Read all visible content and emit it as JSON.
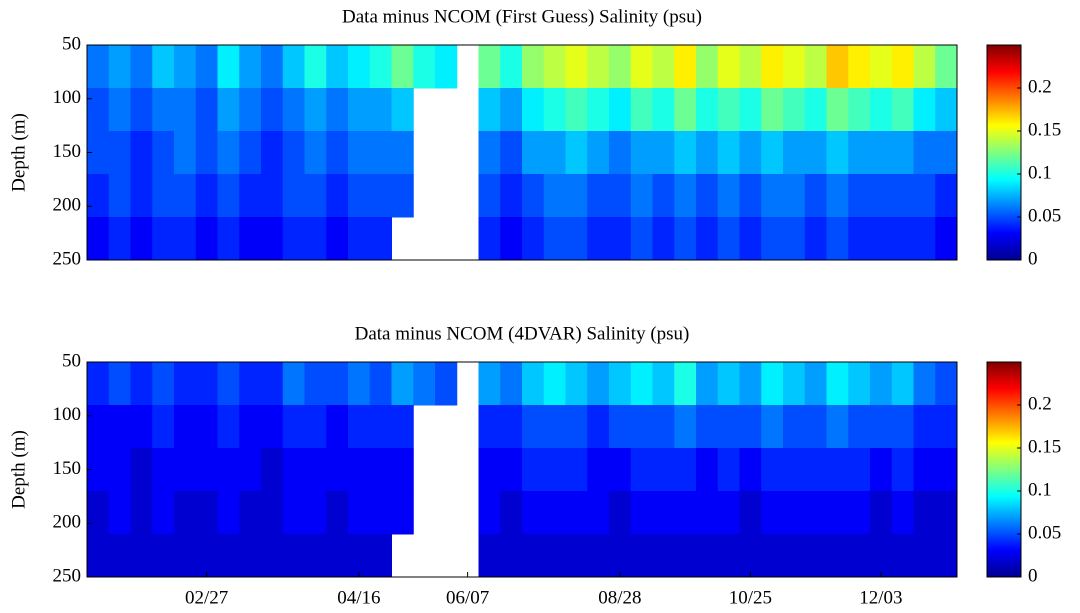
{
  "chart_data": [
    {
      "type": "heatmap",
      "title": "Data minus NCOM (First Guess) Salinity (psu)",
      "y_label": "Depth (m)",
      "ylim": [
        50,
        250
      ],
      "yticks": [
        50,
        100,
        150,
        200,
        250
      ],
      "y_reversed": true,
      "y_edges": [
        50,
        90,
        130,
        170,
        210,
        250
      ],
      "colormap": "jet",
      "clim": [
        0,
        0.25
      ],
      "cticks": [
        0,
        0.05,
        0.1,
        0.15,
        0.2
      ],
      "values": [
        [
          0.06,
          0.07,
          0.06,
          0.08,
          0.07,
          0.06,
          0.09,
          0.07,
          0.06,
          0.08,
          0.1,
          0.08,
          0.09,
          0.1,
          0.12,
          0.1,
          0.09,
          null,
          0.12,
          0.1,
          0.13,
          0.14,
          0.15,
          0.14,
          0.13,
          0.15,
          0.14,
          0.16,
          0.13,
          0.15,
          0.14,
          0.16,
          0.15,
          0.14,
          0.17,
          0.16,
          0.15,
          0.16,
          0.14,
          0.12
        ],
        [
          0.05,
          0.06,
          0.05,
          0.06,
          0.06,
          0.05,
          0.07,
          0.06,
          0.05,
          0.06,
          0.07,
          0.06,
          0.07,
          0.07,
          0.08,
          null,
          null,
          null,
          0.08,
          0.07,
          0.09,
          0.1,
          0.11,
          0.1,
          0.09,
          0.11,
          0.1,
          0.12,
          0.1,
          0.11,
          0.1,
          0.12,
          0.11,
          0.1,
          0.12,
          0.11,
          0.1,
          0.11,
          0.09,
          0.08
        ],
        [
          0.05,
          0.05,
          0.04,
          0.05,
          0.06,
          0.05,
          0.06,
          0.05,
          0.04,
          0.05,
          0.06,
          0.05,
          0.06,
          0.06,
          0.06,
          null,
          null,
          null,
          0.06,
          0.05,
          0.07,
          0.07,
          0.08,
          0.07,
          0.06,
          0.07,
          0.07,
          0.08,
          0.07,
          0.08,
          0.07,
          0.08,
          0.07,
          0.07,
          0.08,
          0.07,
          0.07,
          0.07,
          0.06,
          0.06
        ],
        [
          0.04,
          0.05,
          0.04,
          0.05,
          0.05,
          0.04,
          0.05,
          0.04,
          0.04,
          0.05,
          0.05,
          0.04,
          0.05,
          0.05,
          0.05,
          null,
          null,
          null,
          0.05,
          0.04,
          0.05,
          0.06,
          0.06,
          0.05,
          0.05,
          0.06,
          0.05,
          0.06,
          0.05,
          0.06,
          0.05,
          0.06,
          0.06,
          0.05,
          0.06,
          0.05,
          0.05,
          0.05,
          0.05,
          0.04
        ],
        [
          0.03,
          0.04,
          0.03,
          0.04,
          0.04,
          0.03,
          0.04,
          0.03,
          0.03,
          0.04,
          0.04,
          0.03,
          0.04,
          0.04,
          null,
          null,
          null,
          null,
          0.04,
          0.03,
          0.04,
          0.05,
          0.05,
          0.04,
          0.04,
          0.05,
          0.04,
          0.05,
          0.04,
          0.05,
          0.04,
          0.05,
          0.05,
          0.04,
          0.05,
          0.04,
          0.04,
          0.04,
          0.04,
          0.03
        ]
      ]
    },
    {
      "type": "heatmap",
      "title": "Data minus NCOM (4DVAR) Salinity (psu)",
      "y_label": "Depth (m)",
      "ylim": [
        50,
        250
      ],
      "yticks": [
        50,
        100,
        150,
        200,
        250
      ],
      "y_reversed": true,
      "y_edges": [
        50,
        90,
        130,
        170,
        210,
        250
      ],
      "categories": [
        null,
        null,
        null,
        null,
        null,
        "02/27",
        null,
        null,
        null,
        null,
        null,
        null,
        "04/16",
        null,
        null,
        null,
        null,
        "06/07",
        null,
        null,
        null,
        null,
        null,
        null,
        "08/28",
        null,
        null,
        null,
        null,
        null,
        "10/25",
        null,
        null,
        null,
        null,
        null,
        "12/03",
        null,
        null,
        null
      ],
      "colormap": "jet",
      "clim": [
        0,
        0.25
      ],
      "cticks": [
        0,
        0.05,
        0.1,
        0.15,
        0.2
      ],
      "values": [
        [
          0.04,
          0.05,
          0.04,
          0.05,
          0.04,
          0.04,
          0.05,
          0.04,
          0.04,
          0.06,
          0.05,
          0.05,
          0.06,
          0.05,
          0.07,
          0.06,
          0.05,
          null,
          0.07,
          0.06,
          0.08,
          0.09,
          0.08,
          0.07,
          0.08,
          0.09,
          0.08,
          0.1,
          0.07,
          0.08,
          0.07,
          0.09,
          0.08,
          0.07,
          0.09,
          0.08,
          0.07,
          0.08,
          0.06,
          0.05
        ],
        [
          0.03,
          0.03,
          0.03,
          0.04,
          0.03,
          0.03,
          0.04,
          0.03,
          0.03,
          0.04,
          0.04,
          0.03,
          0.04,
          0.04,
          0.04,
          null,
          null,
          null,
          0.04,
          0.04,
          0.05,
          0.05,
          0.05,
          0.04,
          0.05,
          0.05,
          0.05,
          0.06,
          0.05,
          0.05,
          0.05,
          0.06,
          0.05,
          0.05,
          0.06,
          0.05,
          0.05,
          0.05,
          0.04,
          0.04
        ],
        [
          0.03,
          0.03,
          0.02,
          0.03,
          0.03,
          0.03,
          0.03,
          0.03,
          0.02,
          0.03,
          0.03,
          0.03,
          0.03,
          0.03,
          0.03,
          null,
          null,
          null,
          0.03,
          0.03,
          0.04,
          0.04,
          0.04,
          0.03,
          0.03,
          0.04,
          0.04,
          0.04,
          0.03,
          0.04,
          0.03,
          0.04,
          0.04,
          0.04,
          0.04,
          0.04,
          0.03,
          0.04,
          0.03,
          0.03
        ],
        [
          0.02,
          0.03,
          0.02,
          0.03,
          0.02,
          0.02,
          0.03,
          0.02,
          0.02,
          0.03,
          0.03,
          0.02,
          0.03,
          0.03,
          0.03,
          null,
          null,
          null,
          0.03,
          0.02,
          0.03,
          0.03,
          0.03,
          0.03,
          0.02,
          0.03,
          0.03,
          0.03,
          0.03,
          0.03,
          0.02,
          0.03,
          0.03,
          0.03,
          0.03,
          0.03,
          0.02,
          0.03,
          0.02,
          0.02
        ],
        [
          0.02,
          0.02,
          0.02,
          0.02,
          0.02,
          0.02,
          0.02,
          0.02,
          0.02,
          0.02,
          0.02,
          0.02,
          0.02,
          0.02,
          null,
          null,
          null,
          null,
          0.02,
          0.02,
          0.02,
          0.02,
          0.02,
          0.02,
          0.02,
          0.02,
          0.02,
          0.02,
          0.02,
          0.02,
          0.02,
          0.02,
          0.02,
          0.02,
          0.02,
          0.02,
          0.02,
          0.02,
          0.02,
          0.02
        ]
      ]
    }
  ]
}
